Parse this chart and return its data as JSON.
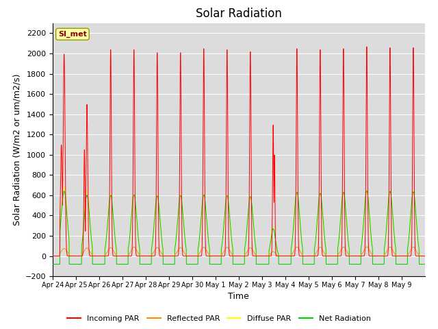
{
  "title": "Solar Radiation",
  "ylabel": "Solar Radiation (W/m2 or um/m2/s)",
  "xlabel": "Time",
  "station_label": "SI_met",
  "ylim": [
    -200,
    2300
  ],
  "yticks": [
    -200,
    0,
    200,
    400,
    600,
    800,
    1000,
    1200,
    1400,
    1600,
    1800,
    2000,
    2200
  ],
  "xtick_labels": [
    "Apr 24",
    "Apr 25",
    "Apr 26",
    "Apr 27",
    "Apr 28",
    "Apr 29",
    "Apr 30",
    "May 1",
    "May 2",
    "May 3",
    "May 4",
    "May 5",
    "May 6",
    "May 7",
    "May 8",
    "May 9"
  ],
  "n_days": 16,
  "colors": {
    "incoming": "#FF0000",
    "reflected": "#FF8C00",
    "diffuse": "#FFFF00",
    "net": "#00CC00"
  },
  "legend_labels": [
    "Incoming PAR",
    "Reflected PAR",
    "Diffuse PAR",
    "Net Radiation"
  ],
  "background_color": "#DCDCDC",
  "title_fontsize": 12,
  "label_fontsize": 9
}
